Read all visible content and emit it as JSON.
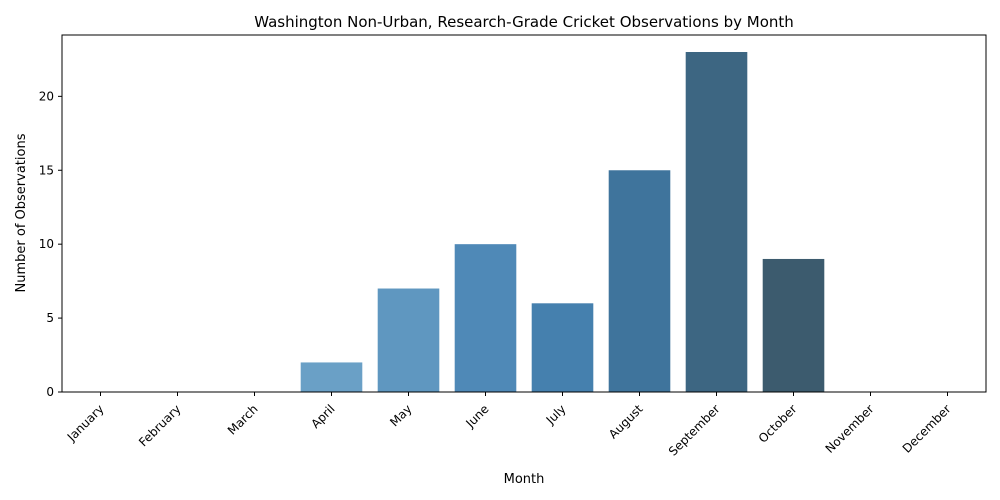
{
  "chart_data": {
    "type": "bar",
    "title": "Washington Non-Urban, Research-Grade Cricket Observations by Month",
    "xlabel": "Month",
    "ylabel": "Number of Observations",
    "categories": [
      "January",
      "February",
      "March",
      "April",
      "May",
      "June",
      "July",
      "August",
      "September",
      "October",
      "November",
      "December"
    ],
    "values": [
      0,
      0,
      0,
      2,
      7,
      10,
      6,
      15,
      23,
      9,
      0,
      0
    ],
    "ylim": [
      0,
      24.15
    ],
    "yticks": [
      0,
      5,
      10,
      15,
      20
    ],
    "grid": false,
    "bar_colors": [
      "#7fb2d5",
      "#78acd1",
      "#71a5cc",
      "#6aa0c6",
      "#5f97c0",
      "#4f89b7",
      "#4580ae",
      "#3f749c",
      "#3d6682",
      "#3c5b6e",
      "#3a5262",
      "#384b58"
    ]
  }
}
